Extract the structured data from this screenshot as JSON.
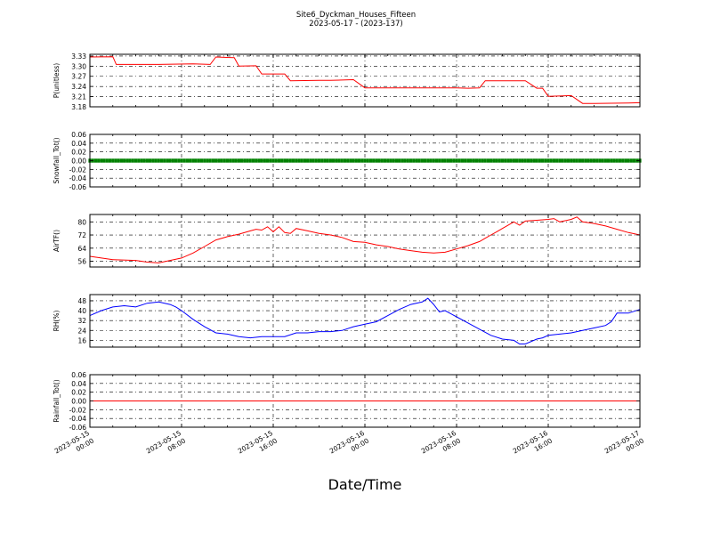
{
  "figure": {
    "title": "Site6_Dyckman_Houses_Fifteen",
    "subtitle": "2023-05-17 - (2023-137)",
    "xlabel": "Date/Time"
  },
  "chart_data": [
    {
      "type": "line",
      "ylabel": "P(unitless)",
      "color": "#ff0000",
      "ylim": [
        3.18,
        3.335
      ],
      "yticks": [
        "3.33",
        "3.30",
        "3.27",
        "3.24",
        "3.21",
        "3.18"
      ],
      "ytick_values": [
        3.33,
        3.3,
        3.27,
        3.24,
        3.21,
        3.18
      ],
      "series": [
        {
          "x": [
            0,
            2,
            2.3,
            6,
            9,
            10.5,
            11,
            12.6,
            13,
            14.5,
            15,
            17,
            17.5,
            20,
            21,
            23,
            24,
            28,
            32,
            33,
            34,
            34.5,
            38,
            39,
            39.5,
            40,
            42,
            43,
            44,
            47,
            48
          ],
          "y": [
            3.327,
            3.328,
            3.305,
            3.305,
            3.307,
            3.305,
            3.327,
            3.325,
            3.3,
            3.301,
            3.277,
            3.277,
            3.257,
            3.258,
            3.258,
            3.26,
            3.236,
            3.236,
            3.236,
            3.235,
            3.236,
            3.257,
            3.257,
            3.235,
            3.235,
            3.211,
            3.213,
            3.19,
            3.19,
            3.191,
            3.192
          ]
        }
      ]
    },
    {
      "type": "scatter",
      "ylabel": "Snowfall_Tot()",
      "color": "#008000",
      "ylim": [
        -0.06,
        0.06
      ],
      "yticks": [
        "0.06",
        "0.04",
        "0.02",
        "0.00",
        "-0.02",
        "-0.04",
        "-0.06"
      ],
      "ytick_values": [
        0.06,
        0.04,
        0.02,
        0.0,
        -0.02,
        -0.04,
        -0.06
      ],
      "series": [
        {
          "x_range": [
            0,
            48
          ],
          "y_constant": 0.0
        }
      ]
    },
    {
      "type": "line",
      "ylabel": "AirTF()",
      "color": "#ff0000",
      "ylim": [
        52.5,
        84.5
      ],
      "yticks": [
        "80",
        "72",
        "64",
        "56"
      ],
      "ytick_values": [
        80,
        72,
        64,
        56
      ],
      "series": [
        {
          "x": [
            0,
            1,
            2,
            4,
            5,
            6,
            8,
            9,
            10,
            11,
            12,
            13,
            14,
            14.5,
            15,
            15.5,
            16,
            16.5,
            17,
            17.5,
            18,
            19,
            20,
            21,
            22,
            23,
            24,
            25,
            26,
            27,
            28,
            29,
            30,
            31,
            32,
            33,
            34,
            34.5,
            35,
            35.5,
            36,
            37,
            37.5,
            38,
            39,
            40,
            40.5,
            41,
            42,
            42.5,
            43,
            44,
            45,
            46,
            47,
            48
          ],
          "y": [
            59,
            58,
            57,
            56.5,
            55.5,
            55,
            58,
            61,
            65,
            69,
            71,
            72.5,
            74.5,
            75.5,
            75,
            77,
            74,
            77,
            73.5,
            73,
            76,
            74.5,
            73,
            72,
            70.5,
            68,
            67.5,
            66,
            65,
            63.5,
            62.5,
            61.5,
            61,
            61.5,
            63.5,
            65.5,
            68,
            70,
            72,
            74,
            76,
            80,
            78,
            80.5,
            81,
            81.5,
            82,
            80,
            81.5,
            83,
            80,
            79,
            77.5,
            75.5,
            73.5,
            72
          ]
        }
      ]
    },
    {
      "type": "line",
      "ylabel": "RH(%)",
      "color": "#0000ff",
      "ylim": [
        10.5,
        53
      ],
      "yticks": [
        "48",
        "40",
        "32",
        "24",
        "16"
      ],
      "ytick_values": [
        48,
        40,
        32,
        24,
        16
      ],
      "series": [
        {
          "x": [
            0,
            1,
            2,
            3,
            4,
            5,
            6,
            7,
            7.5,
            8,
            9,
            10,
            11,
            12,
            13,
            14,
            15,
            16,
            17,
            18,
            19,
            20,
            21,
            22,
            23,
            24,
            25,
            26,
            27,
            28,
            29,
            29.5,
            30,
            30.5,
            31,
            32,
            33,
            34,
            35,
            36,
            37,
            37.5,
            38,
            39,
            39.5,
            40,
            41,
            42,
            43,
            44,
            45,
            45.5,
            46,
            47,
            48
          ],
          "y": [
            36,
            40,
            43,
            44,
            43,
            46,
            47,
            45,
            43,
            40,
            33,
            27,
            22,
            21,
            19,
            18,
            19,
            19,
            19,
            22,
            22,
            23,
            23,
            24,
            27,
            29,
            31,
            36,
            41,
            45,
            47,
            50,
            45,
            39,
            40,
            35,
            30,
            25,
            20,
            17,
            16,
            13,
            13,
            17,
            18,
            20,
            21,
            22,
            24,
            26,
            28,
            31,
            38,
            38,
            41
          ]
        }
      ]
    },
    {
      "type": "line",
      "ylabel": "Rainfall_Tot()",
      "color": "#ff0000",
      "ylim": [
        -0.06,
        0.06
      ],
      "yticks": [
        "0.06",
        "0.04",
        "0.02",
        "0.00",
        "-0.02",
        "-0.04",
        "-0.06"
      ],
      "ytick_values": [
        0.06,
        0.04,
        0.02,
        0.0,
        -0.02,
        -0.04,
        -0.06
      ],
      "series": [
        {
          "x": [
            0,
            48
          ],
          "y": [
            0.0,
            0.0
          ]
        }
      ]
    }
  ],
  "xaxis": {
    "range_hours": [
      0,
      48
    ],
    "ticks": [
      {
        "hour": 0,
        "line1": "2023-05-15",
        "line2": "00:00"
      },
      {
        "hour": 8,
        "line1": "2023-05-15",
        "line2": "08:00"
      },
      {
        "hour": 16,
        "line1": "2023-05-15",
        "line2": "16:00"
      },
      {
        "hour": 24,
        "line1": "2023-05-16",
        "line2": "00:00"
      },
      {
        "hour": 32,
        "line1": "2023-05-16",
        "line2": "08:00"
      },
      {
        "hour": 40,
        "line1": "2023-05-16",
        "line2": "16:00"
      },
      {
        "hour": 48,
        "line1": "2023-05-17",
        "line2": "00:00"
      }
    ]
  }
}
